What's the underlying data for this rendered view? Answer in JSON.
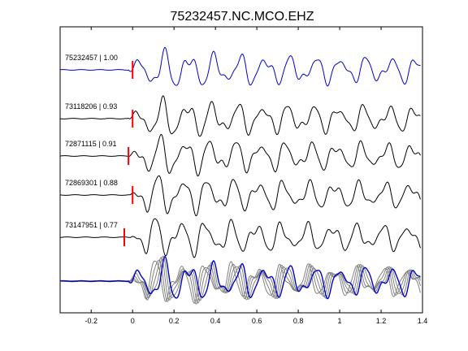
{
  "chart_data": {
    "type": "line",
    "title": "75232457.NC.MCO.EHZ",
    "xlabel": "",
    "ylabel": "",
    "xlim": [
      -0.35,
      1.4
    ],
    "xticks": [
      -0.2,
      0,
      0.2,
      0.4,
      0.6,
      0.8,
      1,
      1.2,
      1.4
    ],
    "xtick_labels": [
      "-0.2",
      "0",
      "0.2",
      "0.4",
      "0.6",
      "0.8",
      "1",
      "1.2",
      "1.4"
    ],
    "grid": false,
    "legend": "none",
    "traces": [
      {
        "label": "75232457 | 1.00",
        "color": "#0000cc",
        "pick": 0.0,
        "pick_color": "#ff0000"
      },
      {
        "label": "73118206 | 0.93",
        "color": "#000000",
        "pick": 0.0,
        "pick_color": "#ff0000"
      },
      {
        "label": "72871115 | 0.91",
        "color": "#000000",
        "pick": -0.02,
        "pick_color": "#ff0000"
      },
      {
        "label": "72869301 | 0.88",
        "color": "#000000",
        "pick": 0.0,
        "pick_color": "#ff0000"
      },
      {
        "label": "73147951 | 0.77",
        "color": "#000000",
        "pick": -0.04,
        "pick_color": "#ff0000"
      }
    ],
    "stack": {
      "label": "",
      "colors": [
        "#808080",
        "#0000cc"
      ]
    }
  }
}
